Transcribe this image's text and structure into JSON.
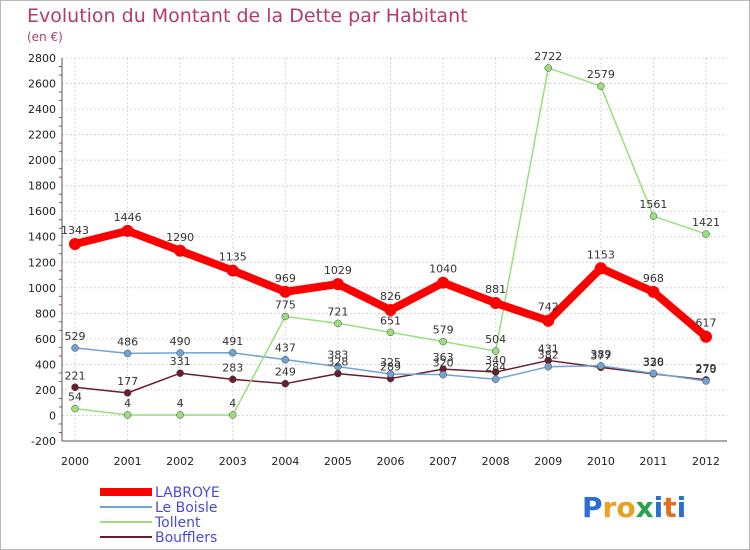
{
  "chart_data": {
    "type": "line",
    "title": "Evolution du Montant de la Dette par Habitant",
    "subtitle": "(en €)",
    "xlabel": "",
    "ylabel": "",
    "x": [
      "2000",
      "2001",
      "2002",
      "2003",
      "2004",
      "2005",
      "2006",
      "2007",
      "2008",
      "2009",
      "2010",
      "2011",
      "2012"
    ],
    "ylim": [
      -200,
      2800
    ],
    "yticks": [
      "-200",
      "0",
      "200",
      "400",
      "600",
      "800",
      "1000",
      "1200",
      "1400",
      "1600",
      "1800",
      "2000",
      "2200",
      "2400",
      "2600",
      "2800"
    ],
    "grid": true,
    "legend_position": "bottom-left",
    "series": [
      {
        "name": "LABROYE",
        "color": "#ff0000",
        "values": [
          1343,
          1446,
          1290,
          1135,
          969,
          1029,
          826,
          1040,
          881,
          742,
          1153,
          968,
          617
        ],
        "labels": [
          "1343",
          "1446",
          "1290",
          "1135",
          "969",
          "1029",
          "826",
          "1040",
          "881",
          "742",
          "1153",
          "968",
          "617"
        ]
      },
      {
        "name": "Le Boisle",
        "color": "#6fa3d6",
        "values": [
          529,
          486,
          490,
          491,
          437,
          383,
          325,
          320,
          284,
          382,
          389,
          330,
          270
        ],
        "labels": [
          "529",
          "486",
          "490",
          "491",
          "437",
          "383",
          "325",
          "320",
          "284",
          "382",
          "389",
          "330",
          "270"
        ]
      },
      {
        "name": "Tollent",
        "color": "#99e07a",
        "values": [
          54,
          4,
          4,
          4,
          775,
          721,
          651,
          579,
          504,
          2722,
          2579,
          1561,
          1421
        ],
        "labels": [
          "54",
          "4",
          "4",
          "4",
          "775",
          "721",
          "651",
          "579",
          "504",
          "2722",
          "2579",
          "1561",
          "1421"
        ]
      },
      {
        "name": "Boufflers",
        "color": "#6b1c2e",
        "values": [
          221,
          177,
          331,
          283,
          249,
          328,
          289,
          363,
          340,
          431,
          377,
          326,
          279
        ],
        "labels": [
          "221",
          "177",
          "331",
          "283",
          "249",
          "328",
          "289",
          "363",
          "340",
          "431",
          "377",
          "326",
          "279"
        ]
      }
    ]
  },
  "logo": {
    "text": "Proxiti",
    "letters": [
      "P",
      "r",
      "o",
      "x",
      "i",
      "t",
      "i"
    ],
    "colors": [
      "#2b6fd6",
      "#f0a020",
      "#e8a020",
      "#2aa24a",
      "#2b6fd6",
      "#e07020",
      "#2b6fd6"
    ]
  }
}
